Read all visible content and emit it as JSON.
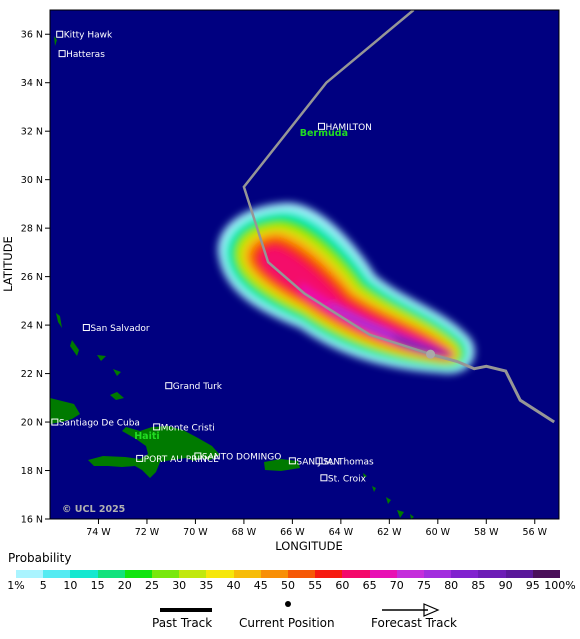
{
  "axes": {
    "xlabel": "LONGITUDE",
    "ylabel": "LATITUDE",
    "x_ticks": [
      "74 W",
      "72 W",
      "70 W",
      "68 W",
      "66 W",
      "64 W",
      "62 W",
      "60 W",
      "58 W",
      "56 W"
    ],
    "y_ticks": [
      "36 N",
      "34 N",
      "32 N",
      "30 N",
      "28 N",
      "26 N",
      "24 N",
      "22 N",
      "20 N",
      "18 N",
      "16 N"
    ]
  },
  "places": [
    {
      "name": "Kitty Hawk",
      "lon": -75.6,
      "lat": 36.0
    },
    {
      "name": "Hatteras",
      "lon": -75.5,
      "lat": 35.2
    },
    {
      "name": "HAMILTON",
      "lon": -64.8,
      "lat": 32.2
    },
    {
      "name": "San Salvador",
      "lon": -74.5,
      "lat": 23.9
    },
    {
      "name": "Grand Turk",
      "lon": -71.1,
      "lat": 21.5
    },
    {
      "name": "Santiago De Cuba",
      "lon": -75.8,
      "lat": 20.0
    },
    {
      "name": "Monte Cristi",
      "lon": -71.6,
      "lat": 19.8
    },
    {
      "name": "SANTO DOMINGO",
      "lon": -69.9,
      "lat": 18.6
    },
    {
      "name": "PORT AU PRINCE",
      "lon": -72.3,
      "lat": 18.5
    },
    {
      "name": "SAN JUAN",
      "lon": -66.0,
      "lat": 18.4
    },
    {
      "name": "St. Thomas",
      "lon": -64.9,
      "lat": 18.4
    },
    {
      "name": "St. Croix",
      "lon": -64.7,
      "lat": 17.7
    }
  ],
  "regions": [
    {
      "name": "Bermuda",
      "lon": -64.7,
      "lat": 31.8
    },
    {
      "name": "Haiti",
      "lon": -72.0,
      "lat": 19.3
    }
  ],
  "copyright": "© UCL 2025",
  "tracks": {
    "forecast_track": [
      [
        -61.0,
        37.0
      ],
      [
        -64.6,
        34.0
      ],
      [
        -68.0,
        29.7
      ],
      [
        -67.0,
        26.6
      ],
      [
        -65.5,
        25.3
      ],
      [
        -62.8,
        23.6
      ],
      [
        -60.3,
        22.8
      ]
    ],
    "past_track": [
      [
        -60.3,
        22.8
      ],
      [
        -59.2,
        22.5
      ],
      [
        -58.5,
        22.2
      ],
      [
        -58.0,
        22.3
      ],
      [
        -57.2,
        22.1
      ],
      [
        -56.6,
        20.9
      ],
      [
        -55.2,
        20.0
      ]
    ],
    "current_position": [
      -60.3,
      22.8
    ]
  },
  "probability_legend": {
    "title": "Probability",
    "tick_labels": [
      "1%",
      "5",
      "10",
      "15",
      "20",
      "25",
      "30",
      "35",
      "40",
      "45",
      "50",
      "55",
      "60",
      "65",
      "70",
      "75",
      "80",
      "85",
      "90",
      "95",
      "100%"
    ],
    "colors": [
      "#aaf4ff",
      "#55ebf2",
      "#14e8d0",
      "#11e27c",
      "#11e40f",
      "#78e80d",
      "#c1e80d",
      "#f6e70a",
      "#f7bc08",
      "#f88f07",
      "#f65806",
      "#f71a10",
      "#f4086a",
      "#e810b4",
      "#c42ddb",
      "#a22dde",
      "#8123cf",
      "#6c1db6",
      "#5a189a",
      "#4a0f5a"
    ]
  },
  "key": {
    "past_track": "Past Track",
    "current_position": "Current Position",
    "forecast_track": "Forecast Track"
  },
  "colors": {
    "ocean": "#000080",
    "land": "#007a00",
    "track": "#969696"
  }
}
